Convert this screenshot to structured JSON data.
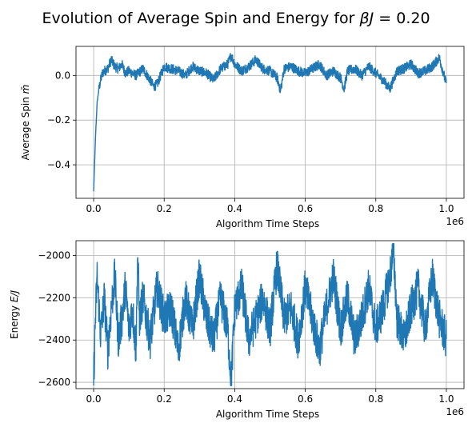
{
  "figure": {
    "title_text": "Evolution of Average Spin and Energy for ",
    "title_math_symbol": "βJ",
    "title_math_value": " = 0.20"
  },
  "chart_data": [
    {
      "type": "line",
      "xlabel": "Algorithm Time Steps",
      "ylabel_prefix": "Average Spin ",
      "ylabel_math": "m̄",
      "x_sci_multiplier": "1e6",
      "xlim": [
        -50000,
        1050000
      ],
      "ylim": [
        -0.55,
        0.13
      ],
      "grid": true,
      "color": "#1f77b4",
      "x_ticks": [
        0,
        200000,
        400000,
        600000,
        800000,
        1000000
      ],
      "x_tick_labels": [
        "0.0",
        "0.2",
        "0.4",
        "0.6",
        "0.8",
        "1.0"
      ],
      "y_ticks": [
        -0.4,
        -0.2,
        0.0
      ],
      "y_tick_labels": [
        "−0.4",
        "−0.2",
        "0.0"
      ],
      "series": [
        {
          "x": [
            0,
            3000,
            6000,
            10000,
            15000,
            20000,
            25000,
            30000,
            40000,
            50000,
            60000,
            70000,
            80000,
            90000,
            100000,
            120000,
            140000,
            160000,
            170000,
            180000,
            200000,
            220000,
            240000,
            260000,
            280000,
            300000,
            320000,
            340000,
            360000,
            380000,
            390000,
            400000,
            420000,
            440000,
            460000,
            480000,
            500000,
            520000,
            530000,
            540000,
            560000,
            580000,
            600000,
            620000,
            640000,
            660000,
            680000,
            700000,
            710000,
            720000,
            740000,
            760000,
            780000,
            800000,
            820000,
            840000,
            860000,
            880000,
            900000,
            920000,
            940000,
            960000,
            980000,
            1000000
          ],
          "y": [
            -0.52,
            -0.38,
            -0.25,
            -0.12,
            -0.06,
            -0.02,
            0.01,
            0.02,
            0.03,
            0.07,
            0.04,
            0.03,
            0.05,
            0.01,
            0.02,
            0.0,
            0.03,
            -0.02,
            -0.05,
            -0.04,
            0.04,
            0.03,
            0.02,
            0.0,
            0.04,
            0.02,
            0.01,
            -0.02,
            0.03,
            0.05,
            0.09,
            0.05,
            0.02,
            0.04,
            0.07,
            0.03,
            0.02,
            -0.01,
            -0.07,
            0.03,
            0.04,
            0.02,
            0.01,
            0.03,
            0.05,
            0.0,
            0.02,
            -0.01,
            -0.06,
            0.02,
            0.03,
            0.0,
            0.04,
            0.01,
            -0.02,
            -0.06,
            0.02,
            0.03,
            0.05,
            0.01,
            0.02,
            0.04,
            0.08,
            -0.04
          ]
        }
      ]
    },
    {
      "type": "line",
      "xlabel": "Algorithm Time Steps",
      "ylabel_prefix": "Energy ",
      "ylabel_math": "E/J",
      "x_sci_multiplier": "1e6",
      "xlim": [
        -50000,
        1050000
      ],
      "ylim": [
        -2630,
        -1930
      ],
      "grid": true,
      "color": "#1f77b4",
      "x_ticks": [
        0,
        200000,
        400000,
        600000,
        800000,
        1000000
      ],
      "x_tick_labels": [
        "0.0",
        "0.2",
        "0.4",
        "0.6",
        "0.8",
        "1.0"
      ],
      "y_ticks": [
        -2600,
        -2400,
        -2200,
        -2000
      ],
      "y_tick_labels": [
        "−2600",
        "−2400",
        "−2200",
        "−2000"
      ],
      "series": [
        {
          "x": [
            0,
            5000,
            10000,
            20000,
            30000,
            40000,
            50000,
            60000,
            70000,
            80000,
            90000,
            100000,
            110000,
            120000,
            125000,
            130000,
            140000,
            160000,
            180000,
            200000,
            220000,
            240000,
            260000,
            280000,
            300000,
            320000,
            340000,
            360000,
            380000,
            390000,
            400000,
            420000,
            440000,
            460000,
            480000,
            500000,
            520000,
            540000,
            560000,
            580000,
            600000,
            620000,
            640000,
            660000,
            680000,
            700000,
            720000,
            740000,
            760000,
            780000,
            800000,
            820000,
            840000,
            850000,
            860000,
            880000,
            900000,
            920000,
            940000,
            960000,
            980000,
            1000000
          ],
          "y": [
            -2590,
            -2300,
            -2100,
            -2380,
            -2200,
            -2450,
            -2250,
            -2100,
            -2400,
            -2300,
            -2150,
            -2350,
            -2250,
            -2450,
            -1990,
            -2300,
            -2200,
            -2400,
            -2150,
            -2300,
            -2250,
            -2450,
            -2200,
            -2350,
            -2100,
            -2300,
            -2400,
            -2200,
            -2350,
            -2600,
            -2250,
            -2150,
            -2400,
            -2300,
            -2200,
            -2350,
            -2050,
            -2300,
            -2250,
            -2400,
            -2150,
            -2300,
            -2450,
            -2250,
            -2100,
            -2350,
            -2200,
            -2400,
            -2300,
            -2150,
            -2350,
            -2250,
            -2100,
            -1970,
            -2300,
            -2400,
            -2250,
            -2150,
            -2350,
            -2100,
            -2300,
            -2400
          ]
        }
      ]
    }
  ]
}
